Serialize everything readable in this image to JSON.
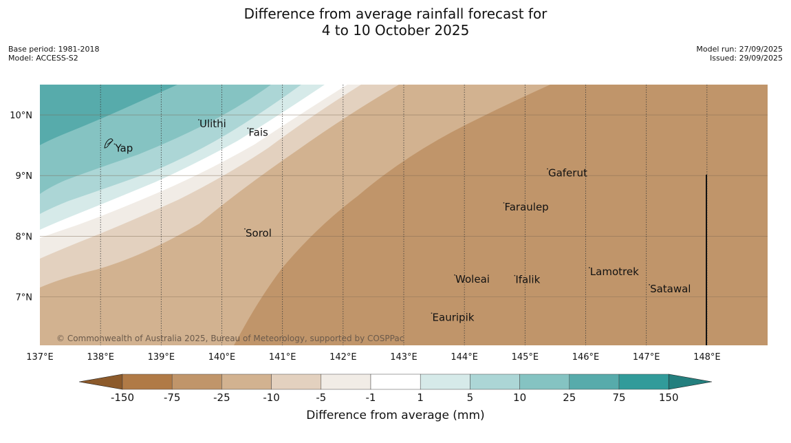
{
  "title": {
    "line1": "Difference from average rainfall forecast for",
    "line2": "4 to 10 October 2025"
  },
  "meta": {
    "base_period": "Base period: 1981-2018",
    "model": "Model: ACCESS-S2",
    "model_run": "Model run: 27/09/2025",
    "issued": "Issued: 29/09/2025"
  },
  "map": {
    "lon_range": [
      137,
      149
    ],
    "lat_range": [
      6.2,
      10.5
    ],
    "lon_ticks": [
      {
        "value": 137,
        "label": "137°E"
      },
      {
        "value": 138,
        "label": "138°E"
      },
      {
        "value": 139,
        "label": "139°E"
      },
      {
        "value": 140,
        "label": "140°E"
      },
      {
        "value": 141,
        "label": "141°E"
      },
      {
        "value": 142,
        "label": "142°E"
      },
      {
        "value": 143,
        "label": "143°E"
      },
      {
        "value": 144,
        "label": "144°E"
      },
      {
        "value": 145,
        "label": "145°E"
      },
      {
        "value": 146,
        "label": "146°E"
      },
      {
        "value": 147,
        "label": "147°E"
      },
      {
        "value": 148,
        "label": "148°E"
      }
    ],
    "lat_ticks": [
      {
        "value": 10,
        "label": "10°N"
      },
      {
        "value": 9,
        "label": "9°N"
      },
      {
        "value": 8,
        "label": "8°N"
      },
      {
        "value": 7,
        "label": "7°N"
      }
    ],
    "places": [
      {
        "name": "Yap",
        "lon": 138.23,
        "lat": 9.52
      },
      {
        "name": "Ulithi",
        "lon": 139.62,
        "lat": 9.92
      },
      {
        "name": "Fais",
        "lon": 140.43,
        "lat": 9.78
      },
      {
        "name": "Gaferut",
        "lon": 145.37,
        "lat": 9.11
      },
      {
        "name": "Faraulep",
        "lon": 144.65,
        "lat": 8.55
      },
      {
        "name": "Sorol",
        "lon": 140.38,
        "lat": 8.12
      },
      {
        "name": "Lamotrek",
        "lon": 146.06,
        "lat": 7.48
      },
      {
        "name": "Satawal",
        "lon": 147.05,
        "lat": 7.2
      },
      {
        "name": "Woleai",
        "lon": 143.84,
        "lat": 7.36
      },
      {
        "name": "Ifalik",
        "lon": 144.83,
        "lat": 7.35
      },
      {
        "name": "Eauripik",
        "lon": 143.46,
        "lat": 6.73
      }
    ],
    "copyright": "© Commonwealth of Australia 2025, Bureau of Meteorology, supported by COSPPac"
  },
  "legend": {
    "label": "Difference from average (mm)",
    "ticks": [
      "-150",
      "-75",
      "-25",
      "-10",
      "-5",
      "-1",
      "1",
      "5",
      "10",
      "25",
      "75",
      "150"
    ],
    "colors": {
      "extreme_dry": "#8c5a2b",
      "lt_-75": "#b07a46",
      "-75_-25": "#c0956a",
      "-25_-10": "#d2b290",
      "-10_-5": "#e3d1bf",
      "-5_-1": "#f1ece6",
      "-1_1": "#ffffff",
      "1_5": "#d6eae9",
      "5_10": "#acd6d6",
      "10_25": "#85c3c2",
      "25_75": "#57abab",
      "75_150": "#319b9a",
      "extreme_wet": "#247f7e"
    }
  }
}
